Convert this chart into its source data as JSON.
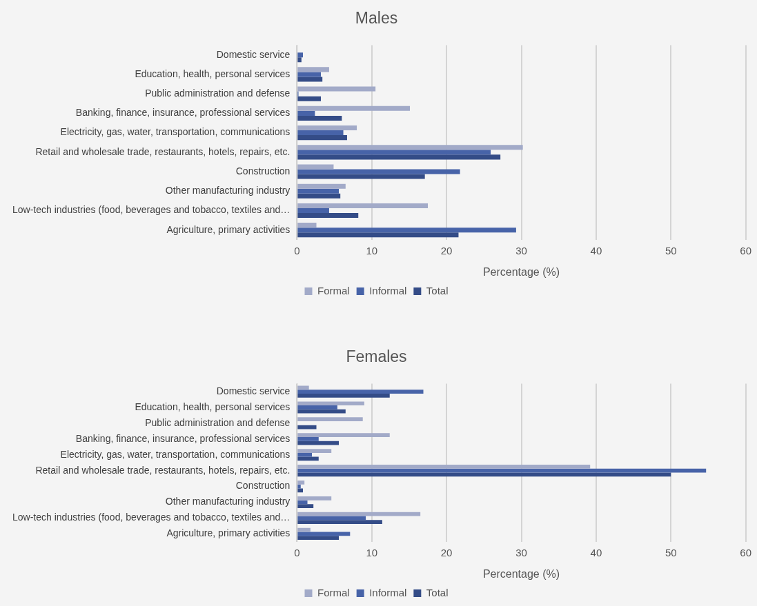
{
  "chart_data": [
    {
      "type": "bar",
      "orientation": "horizontal",
      "title": "Males",
      "xlabel": "Percentage (%)",
      "categories": [
        "Domestic service",
        "Education, health, personal services",
        "Public administration and defense",
        "Banking, finance, insurance, professional services",
        "Electricity, gas, water, transportation, communications",
        "Retail and wholesale trade, restaurants, hotels, repairs, etc.",
        "Construction",
        "Other manufacturing industry",
        "Low-tech industries (food, beverages and tobacco, textiles and…",
        "Agriculture, primary activities"
      ],
      "series": [
        {
          "name": "Formal",
          "color": "#a2aac8",
          "values": [
            0,
            4.3,
            10.5,
            15.1,
            8.0,
            30.2,
            4.9,
            6.5,
            17.5,
            2.6
          ]
        },
        {
          "name": "Informal",
          "color": "#4763a8",
          "values": [
            0.8,
            3.2,
            0.2,
            2.4,
            6.2,
            25.9,
            21.8,
            5.6,
            4.3,
            29.3
          ]
        },
        {
          "name": "Total",
          "color": "#344c87",
          "values": [
            0.6,
            3.4,
            3.2,
            6.0,
            6.7,
            27.2,
            17.1,
            5.8,
            8.2,
            21.6
          ]
        }
      ],
      "xlim": [
        0,
        60
      ],
      "xticks": [
        0,
        10,
        20,
        30,
        40,
        50,
        60
      ],
      "grid": "x",
      "legend": "bottom"
    },
    {
      "type": "bar",
      "orientation": "horizontal",
      "title": "Females",
      "xlabel": "Percentage (%)",
      "categories": [
        "Domestic service",
        "Education, health, personal services",
        "Public administration and defense",
        "Banking, finance, insurance, professional services",
        "Electricity, gas, water, transportation, communications",
        "Retail and wholesale trade, restaurants, hotels, repairs, etc.",
        "Construction",
        "Other manufacturing industry",
        "Low-tech industries (food, beverages and tobacco, textiles and…",
        "Agriculture, primary activities"
      ],
      "series": [
        {
          "name": "Formal",
          "color": "#a2aac8",
          "values": [
            1.6,
            9.0,
            8.8,
            12.4,
            4.6,
            39.2,
            1.0,
            4.6,
            16.5,
            1.8
          ]
        },
        {
          "name": "Informal",
          "color": "#4763a8",
          "values": [
            16.9,
            5.4,
            null,
            2.9,
            2.0,
            54.7,
            0.5,
            1.4,
            9.2,
            7.1
          ]
        },
        {
          "name": "Total",
          "color": "#344c87",
          "values": [
            12.4,
            6.5,
            2.6,
            5.6,
            2.9,
            50.0,
            0.8,
            2.2,
            11.4,
            5.6
          ]
        }
      ],
      "xlim": [
        0,
        60
      ],
      "xticks": [
        0,
        10,
        20,
        30,
        40,
        50,
        60
      ],
      "grid": "x",
      "legend": "bottom"
    }
  ]
}
